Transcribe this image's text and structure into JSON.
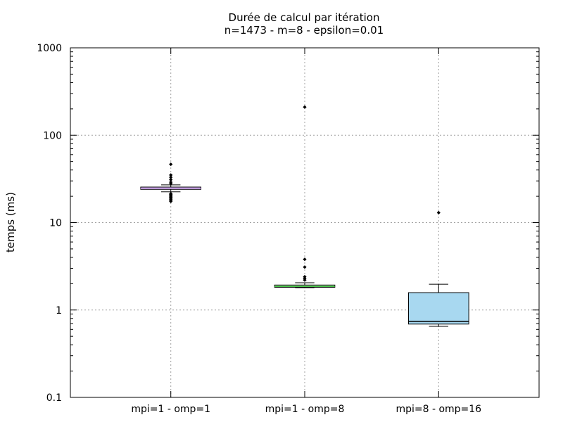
{
  "chart_data": {
    "type": "box",
    "title": "Durée de calcul par itération",
    "subtitle": "n=1473 - m=8 - epsilon=0.01",
    "ylabel": "temps (ms)",
    "xlabel": "",
    "yscale": "log",
    "ylim": [
      0.1,
      1000
    ],
    "yticks": [
      0.1,
      1,
      10,
      100,
      1000
    ],
    "ytick_labels": [
      "0.1",
      "1",
      "10",
      "100",
      "1000"
    ],
    "grid": true,
    "categories": [
      "mpi=1 - omp=1",
      "mpi=1 - omp=8",
      "mpi=8 - omp=16"
    ],
    "boxes": [
      {
        "category": "mpi=1 - omp=1",
        "whisker_low": 22.5,
        "q1": 24.0,
        "median": 24.6,
        "q3": 25.5,
        "whisker_high": 27.0,
        "fill": "#d0a8f0",
        "median_color": "#d0a8f0",
        "outliers": [
          46.5,
          35.0,
          33.0,
          31.0,
          29.0,
          28.0,
          21.5,
          21.0,
          20.5,
          20.0,
          19.5,
          19.0,
          18.5,
          18.0,
          17.5
        ]
      },
      {
        "category": "mpi=1 - omp=8",
        "whisker_low": 1.8,
        "q1": 1.82,
        "median": 1.86,
        "q3": 1.93,
        "whisker_high": 2.05,
        "fill": "#b8e8b8",
        "median_color": "#40c040",
        "outliers": [
          210.0,
          3.8,
          3.1,
          2.4,
          2.3,
          2.2
        ]
      },
      {
        "category": "mpi=8 - omp=16",
        "whisker_low": 0.65,
        "q1": 0.69,
        "median": 0.74,
        "q3": 1.58,
        "whisker_high": 1.97,
        "fill": "#a8d8f0",
        "median_color": "#000000",
        "outliers": [
          13.0
        ]
      }
    ]
  }
}
